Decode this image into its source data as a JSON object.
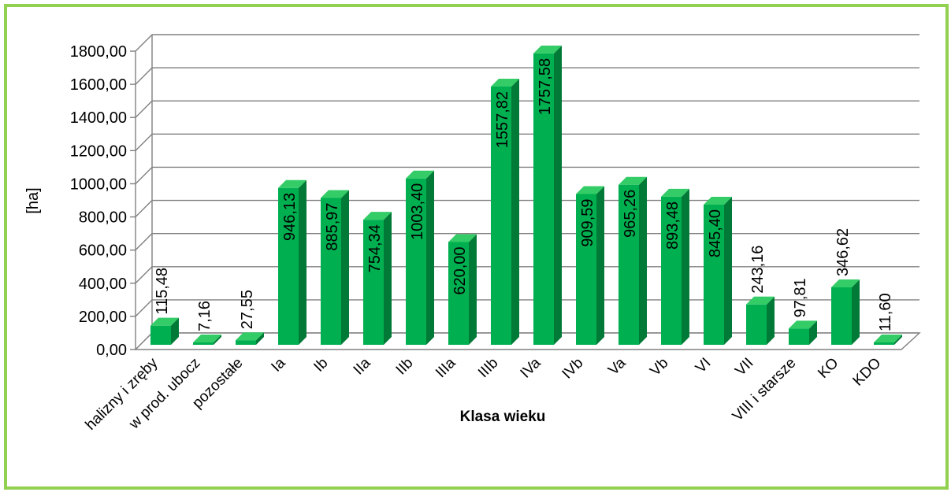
{
  "colors": {
    "border": "#92d050",
    "bar_front": "#00b050",
    "bar_side": "#007a36",
    "bar_top": "#33cc66",
    "grid": "#808080"
  },
  "chart_data": {
    "type": "bar",
    "title": "",
    "xlabel": "Klasa wieku",
    "ylabel": "[ha]",
    "ylim": [
      0,
      1800
    ],
    "yticks": [
      "0,00",
      "200,00",
      "400,00",
      "600,00",
      "800,00",
      "1000,00",
      "1200,00",
      "1400,00",
      "1600,00",
      "1800,00"
    ],
    "grid": true,
    "legend": "none",
    "categories": [
      "halizny i zręby",
      "w prod. ubocz",
      "pozostałe",
      "Ia",
      "Ib",
      "IIa",
      "IIb",
      "IIIa",
      "IIIb",
      "IVa",
      "IVb",
      "Va",
      "Vb",
      "VI",
      "VII",
      "VIII i starsze",
      "KO",
      "KDO"
    ],
    "values": [
      115.48,
      7.16,
      27.55,
      946.13,
      885.97,
      754.34,
      1003.4,
      620.0,
      1557.82,
      1757.58,
      909.59,
      965.26,
      893.48,
      845.4,
      243.16,
      97.81,
      346.62,
      11.6
    ],
    "value_labels": [
      "115,48",
      "7,16",
      "27,55",
      "946,13",
      "885,97",
      "754,34",
      "1003,40",
      "620,00",
      "1557,82",
      "1757,58",
      "909,59",
      "965,26",
      "893,48",
      "845,40",
      "243,16",
      "97,81",
      "346,62",
      "11,60"
    ]
  }
}
